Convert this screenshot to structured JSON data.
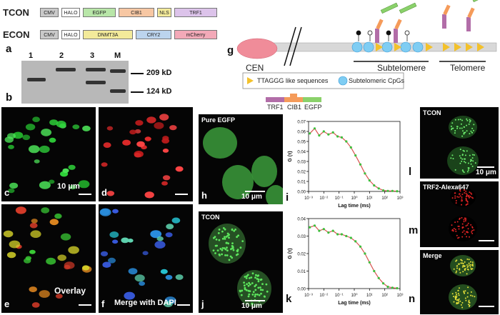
{
  "panel_letters": {
    "a": "a",
    "b": "b",
    "c": "c",
    "d": "d",
    "e": "e",
    "f": "f",
    "g": "g",
    "h": "h",
    "i": "i",
    "j": "j",
    "k": "k",
    "l": "l",
    "m": "m",
    "n": "n"
  },
  "constructs": {
    "tcon": {
      "name": "TCON",
      "segments": [
        {
          "label": "CMV",
          "color": "#c9c9c9"
        },
        {
          "label": "HALO",
          "color": "#ffffff"
        },
        {
          "label": "EGFP",
          "color": "#b8e6a8"
        },
        {
          "label": "CIB1",
          "color": "#f7c7a3"
        },
        {
          "label": "NLS",
          "color": "#f3ea9a"
        },
        {
          "label": "TRF1",
          "color": "#dcc3ea"
        }
      ]
    },
    "econ": {
      "name": "ECON",
      "segments": [
        {
          "label": "CMV",
          "color": "#c9c9c9"
        },
        {
          "label": "HALO",
          "color": "#ffffff"
        },
        {
          "label": "DNMT3A",
          "color": "#f3ea9a"
        },
        {
          "label": "CRY2",
          "color": "#bcd4ee"
        },
        {
          "label": "mCherry",
          "color": "#f3a9b8"
        }
      ]
    }
  },
  "gel": {
    "lanes": [
      "1",
      "2",
      "3",
      "M"
    ],
    "markers": [
      "209 kD",
      "124 kD"
    ]
  },
  "micro": {
    "c_scale": "10 μm",
    "e_label": "Overlay",
    "f_label": "Merge with DAPI",
    "h_label": "Pure EGFP",
    "h_scale": "10 μm",
    "j_label": "TCON",
    "j_scale": "10 μm",
    "l_label": "TCON",
    "l_scale": "10 μm",
    "m_label": "TRF2-Alexa647",
    "n_label": "Merge"
  },
  "schematic": {
    "cen": "CEN",
    "subtelomere": "Subtelomere",
    "telomere": "Telomere",
    "legend_ttaggg": "TTAGGG like sequences",
    "legend_cpg": "Subtelomeric CpGs",
    "legend_trf1": "TRF1",
    "legend_cib1": "CIB1",
    "legend_egfp": "EGFP"
  },
  "chart_data": [
    {
      "type": "scatter",
      "panel": "i",
      "xlabel": "Lag time (ms)",
      "ylabel": "G (τ)",
      "xscale": "log",
      "xlim": [
        0.001,
        1000
      ],
      "ylim": [
        0,
        0.07
      ],
      "yticks": [
        "0.00",
        "0.01",
        "0.02",
        "0.03",
        "0.04",
        "0.05",
        "0.06",
        "0.07"
      ],
      "xticks": [
        "10⁻³",
        "10⁻²",
        "10⁻¹",
        "10⁰",
        "10¹",
        "10²",
        "10³"
      ],
      "series": [
        {
          "points": [
            [
              0.0012,
              0.058
            ],
            [
              0.0025,
              0.063
            ],
            [
              0.005,
              0.056
            ],
            [
              0.01,
              0.06
            ],
            [
              0.02,
              0.057
            ],
            [
              0.04,
              0.059
            ],
            [
              0.08,
              0.055
            ],
            [
              0.15,
              0.054
            ],
            [
              0.3,
              0.05
            ],
            [
              0.6,
              0.044
            ],
            [
              1.2,
              0.036
            ],
            [
              2.5,
              0.027
            ],
            [
              5,
              0.018
            ],
            [
              10,
              0.011
            ],
            [
              20,
              0.006
            ],
            [
              40,
              0.003
            ],
            [
              80,
              0.001
            ],
            [
              160,
              0.0005
            ],
            [
              320,
              0.0005
            ],
            [
              640,
              0.0002
            ]
          ]
        }
      ]
    },
    {
      "type": "scatter",
      "panel": "k",
      "xlabel": "Lag time (ms)",
      "ylabel": "G (τ)",
      "xscale": "log",
      "xlim": [
        0.001,
        1000
      ],
      "ylim": [
        0,
        0.04
      ],
      "yticks": [
        "0.00",
        "0.01",
        "0.02",
        "0.03",
        "0.04"
      ],
      "xticks": [
        "10⁻³",
        "10⁻²",
        "10⁻¹",
        "10⁰",
        "10¹",
        "10²",
        "10³"
      ],
      "series": [
        {
          "points": [
            [
              0.0012,
              0.035
            ],
            [
              0.0025,
              0.036
            ],
            [
              0.005,
              0.033
            ],
            [
              0.01,
              0.034
            ],
            [
              0.02,
              0.032
            ],
            [
              0.04,
              0.033
            ],
            [
              0.08,
              0.031
            ],
            [
              0.15,
              0.031
            ],
            [
              0.3,
              0.03
            ],
            [
              0.6,
              0.029
            ],
            [
              1.2,
              0.027
            ],
            [
              2.5,
              0.024
            ],
            [
              5,
              0.02
            ],
            [
              10,
              0.015
            ],
            [
              20,
              0.01
            ],
            [
              40,
              0.006
            ],
            [
              80,
              0.003
            ],
            [
              160,
              0.001
            ],
            [
              320,
              0.0005
            ],
            [
              640,
              0.0002
            ]
          ]
        }
      ]
    }
  ]
}
